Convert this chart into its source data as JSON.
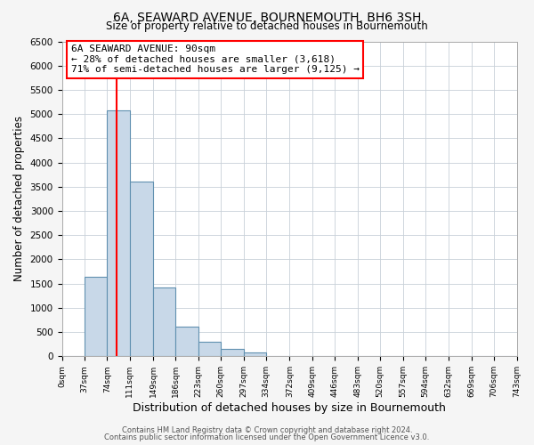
{
  "title": "6A, SEAWARD AVENUE, BOURNEMOUTH, BH6 3SH",
  "subtitle": "Size of property relative to detached houses in Bournemouth",
  "xlabel": "Distribution of detached houses by size in Bournemouth",
  "ylabel": "Number of detached properties",
  "bar_color": "#c8d8e8",
  "bar_edge_color": "#6090b0",
  "bin_edges": [
    0,
    37,
    74,
    111,
    149,
    186,
    223,
    260,
    297,
    334,
    372,
    409,
    446,
    483,
    520,
    557,
    594,
    632,
    669,
    706,
    743
  ],
  "bar_heights": [
    0,
    1650,
    5080,
    3600,
    1430,
    615,
    300,
    155,
    75,
    0,
    0,
    0,
    0,
    0,
    0,
    0,
    0,
    0,
    0,
    0
  ],
  "tick_labels": [
    "0sqm",
    "37sqm",
    "74sqm",
    "111sqm",
    "149sqm",
    "186sqm",
    "223sqm",
    "260sqm",
    "297sqm",
    "334sqm",
    "372sqm",
    "409sqm",
    "446sqm",
    "483sqm",
    "520sqm",
    "557sqm",
    "594sqm",
    "632sqm",
    "669sqm",
    "706sqm",
    "743sqm"
  ],
  "ylim": [
    0,
    6500
  ],
  "yticks": [
    0,
    500,
    1000,
    1500,
    2000,
    2500,
    3000,
    3500,
    4000,
    4500,
    5000,
    5500,
    6000,
    6500
  ],
  "red_line_x": 90,
  "annotation_line1": "6A SEAWARD AVENUE: 90sqm",
  "annotation_line2": "← 28% of detached houses are smaller (3,618)",
  "annotation_line3": "71% of semi-detached houses are larger (9,125) →",
  "footer1": "Contains HM Land Registry data © Crown copyright and database right 2024.",
  "footer2": "Contains public sector information licensed under the Open Government Licence v3.0.",
  "background_color": "#f5f5f5",
  "plot_background": "#ffffff",
  "grid_color": "#c8d0d8"
}
